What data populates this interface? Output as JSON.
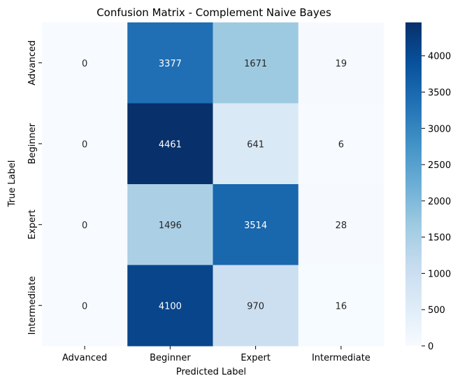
{
  "chart_data": {
    "type": "heatmap",
    "title": "Confusion Matrix - Complement Naive Bayes",
    "xlabel": "Predicted Label",
    "ylabel": "True Label",
    "x_categories": [
      "Advanced",
      "Beginner",
      "Expert",
      "Intermediate"
    ],
    "y_categories": [
      "Advanced",
      "Beginner",
      "Expert",
      "Intermediate"
    ],
    "values": [
      [
        0,
        3377,
        1671,
        19
      ],
      [
        0,
        4461,
        641,
        6
      ],
      [
        0,
        1496,
        3514,
        28
      ],
      [
        0,
        4100,
        970,
        16
      ]
    ],
    "colormap": "Blues",
    "colorbar_range": [
      0,
      4461
    ],
    "colorbar_ticks": [
      0,
      500,
      1000,
      1500,
      2000,
      2500,
      3000,
      3500,
      4000
    ]
  }
}
